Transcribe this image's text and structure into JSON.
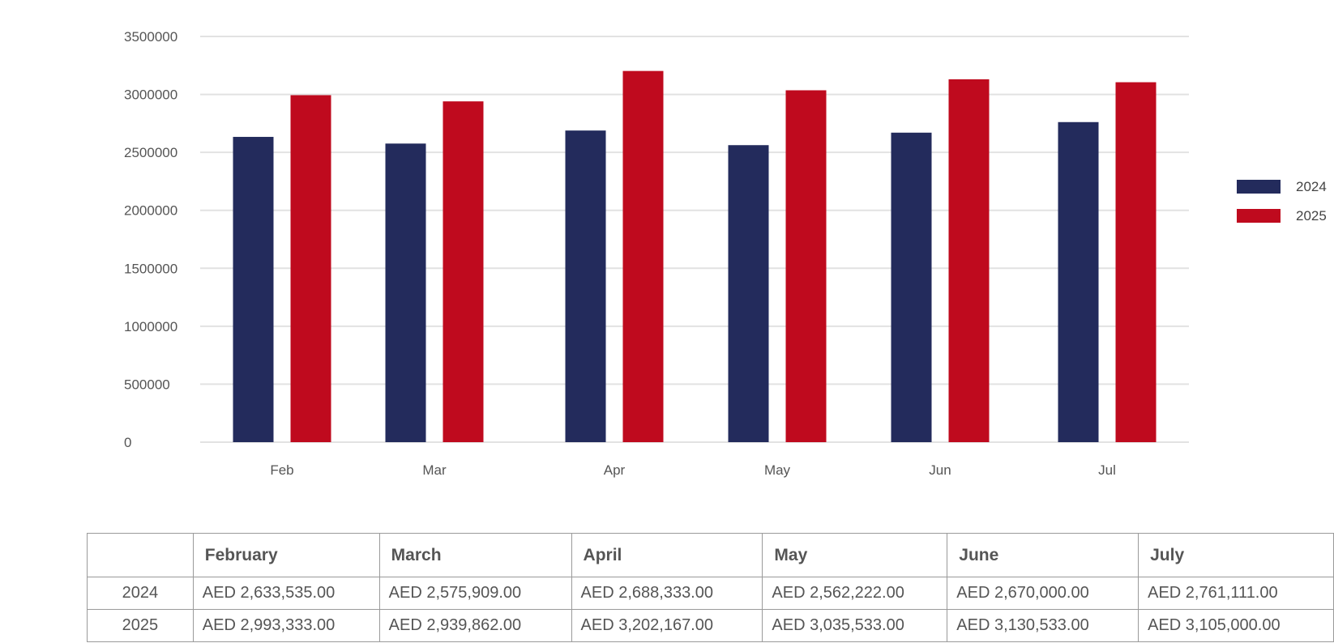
{
  "chart_data": {
    "type": "bar",
    "categories": [
      "Feb",
      "Mar",
      "Apr",
      "May",
      "Jun",
      "Jul"
    ],
    "series": [
      {
        "name": "2024",
        "color": "#232b5c",
        "values": [
          2633535,
          2575909,
          2688333,
          2562222,
          2670000,
          2761111
        ]
      },
      {
        "name": "2025",
        "color": "#bf0a1e",
        "values": [
          2993333,
          2939862,
          3202167,
          3035533,
          3130533,
          3105000
        ]
      }
    ],
    "ylim": [
      0,
      3500000
    ],
    "yticks": [
      "0",
      "500000",
      "1000000",
      "1500000",
      "2000000",
      "2500000",
      "3000000",
      "3500000"
    ],
    "grid": true,
    "gridline_color": "#e2e2e2",
    "legend_position": "right",
    "title": "",
    "xlabel": "",
    "ylabel": ""
  },
  "table": {
    "corner": "",
    "headers": [
      "February",
      "March",
      "April",
      "May",
      "June",
      "July"
    ],
    "rows": [
      {
        "label": "2024",
        "cells": [
          "AED 2,633,535.00",
          "AED 2,575,909.00",
          "AED 2,688,333.00",
          "AED 2,562,222.00",
          "AED 2,670,000.00",
          "AED 2,761,111.00"
        ]
      },
      {
        "label": "2025",
        "cells": [
          "AED 2,993,333.00",
          "AED 2,939,862.00",
          "AED 3,202,167.00",
          "AED 3,035,533.00",
          "AED 3,130,533.00",
          "AED 3,105,000.00"
        ]
      }
    ]
  }
}
